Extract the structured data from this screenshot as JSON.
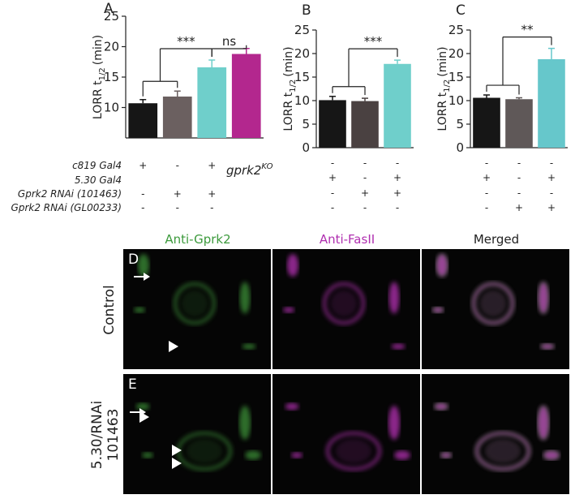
{
  "chart_data": [
    {
      "type": "bar",
      "panel": "A",
      "ylabel": "LORR t",
      "ylabel_sub": "1/2",
      "ylabel_unit": "(min)",
      "categories": [
        null,
        null,
        null,
        null
      ],
      "values": [
        10.7,
        11.8,
        16.6,
        18.8
      ],
      "errors": [
        0.6,
        0.9,
        1.2,
        0.9
      ],
      "colors": [
        "#161616",
        "#6b6060",
        "#6fcfcb",
        "#b3278e"
      ],
      "ylim": [
        5,
        25
      ],
      "yticks": [
        10,
        15,
        20,
        25
      ],
      "significance": [
        "***",
        "ns"
      ],
      "genotypes": [
        [
          "+",
          "-",
          "+",
          null
        ],
        [
          null,
          null,
          null,
          null
        ],
        [
          "-",
          "+",
          "+",
          null
        ],
        [
          "-",
          "-",
          "-",
          null
        ]
      ],
      "bar_label": "gprk2",
      "bar_label_sup": "KO"
    },
    {
      "type": "bar",
      "panel": "B",
      "ylabel": "LORR t",
      "ylabel_sub": "1/2",
      "ylabel_unit": "(min)",
      "categories": [
        null,
        null,
        null
      ],
      "values": [
        10.1,
        9.9,
        17.8
      ],
      "errors": [
        0.8,
        0.6,
        0.8
      ],
      "colors": [
        "#161616",
        "#4a4141",
        "#6fcfcb"
      ],
      "ylim": [
        0,
        25
      ],
      "yticks": [
        0,
        5,
        10,
        15,
        20,
        25
      ],
      "significance": [
        "***"
      ],
      "genotypes": [
        [
          "-",
          "-",
          "-"
        ],
        [
          "+",
          "-",
          "+"
        ],
        [
          "-",
          "+",
          "+"
        ],
        [
          "-",
          "-",
          "-"
        ]
      ]
    },
    {
      "type": "bar",
      "panel": "C",
      "ylabel": "LORR t",
      "ylabel_sub": "1/2",
      "ylabel_unit": "(min)",
      "categories": [
        null,
        null,
        null
      ],
      "values": [
        10.6,
        10.3,
        18.8
      ],
      "errors": [
        0.6,
        0.3,
        2.3
      ],
      "colors": [
        "#161616",
        "#5f5858",
        "#66c7cb"
      ],
      "ylim": [
        0,
        25
      ],
      "yticks": [
        0,
        5,
        10,
        15,
        20,
        25
      ],
      "significance": [
        "**"
      ],
      "genotypes": [
        [
          "-",
          "-",
          "-"
        ],
        [
          "+",
          "-",
          "+"
        ],
        [
          "-",
          "-",
          "-"
        ],
        [
          "-",
          "+",
          "+"
        ]
      ]
    }
  ],
  "genotype_rows": [
    "c819 Gal4",
    "5.30 Gal4",
    "Gprk2 RNAi (101463)",
    "Gprk2 RNAi (GL00233)"
  ],
  "images": {
    "columns": [
      "Anti-Gprk2",
      "Anti-FasII",
      "Merged"
    ],
    "rows": [
      {
        "panel": "D",
        "label": "Control"
      },
      {
        "panel": "E",
        "label": "5.30/RNAi",
        "label2": "101463"
      }
    ]
  }
}
